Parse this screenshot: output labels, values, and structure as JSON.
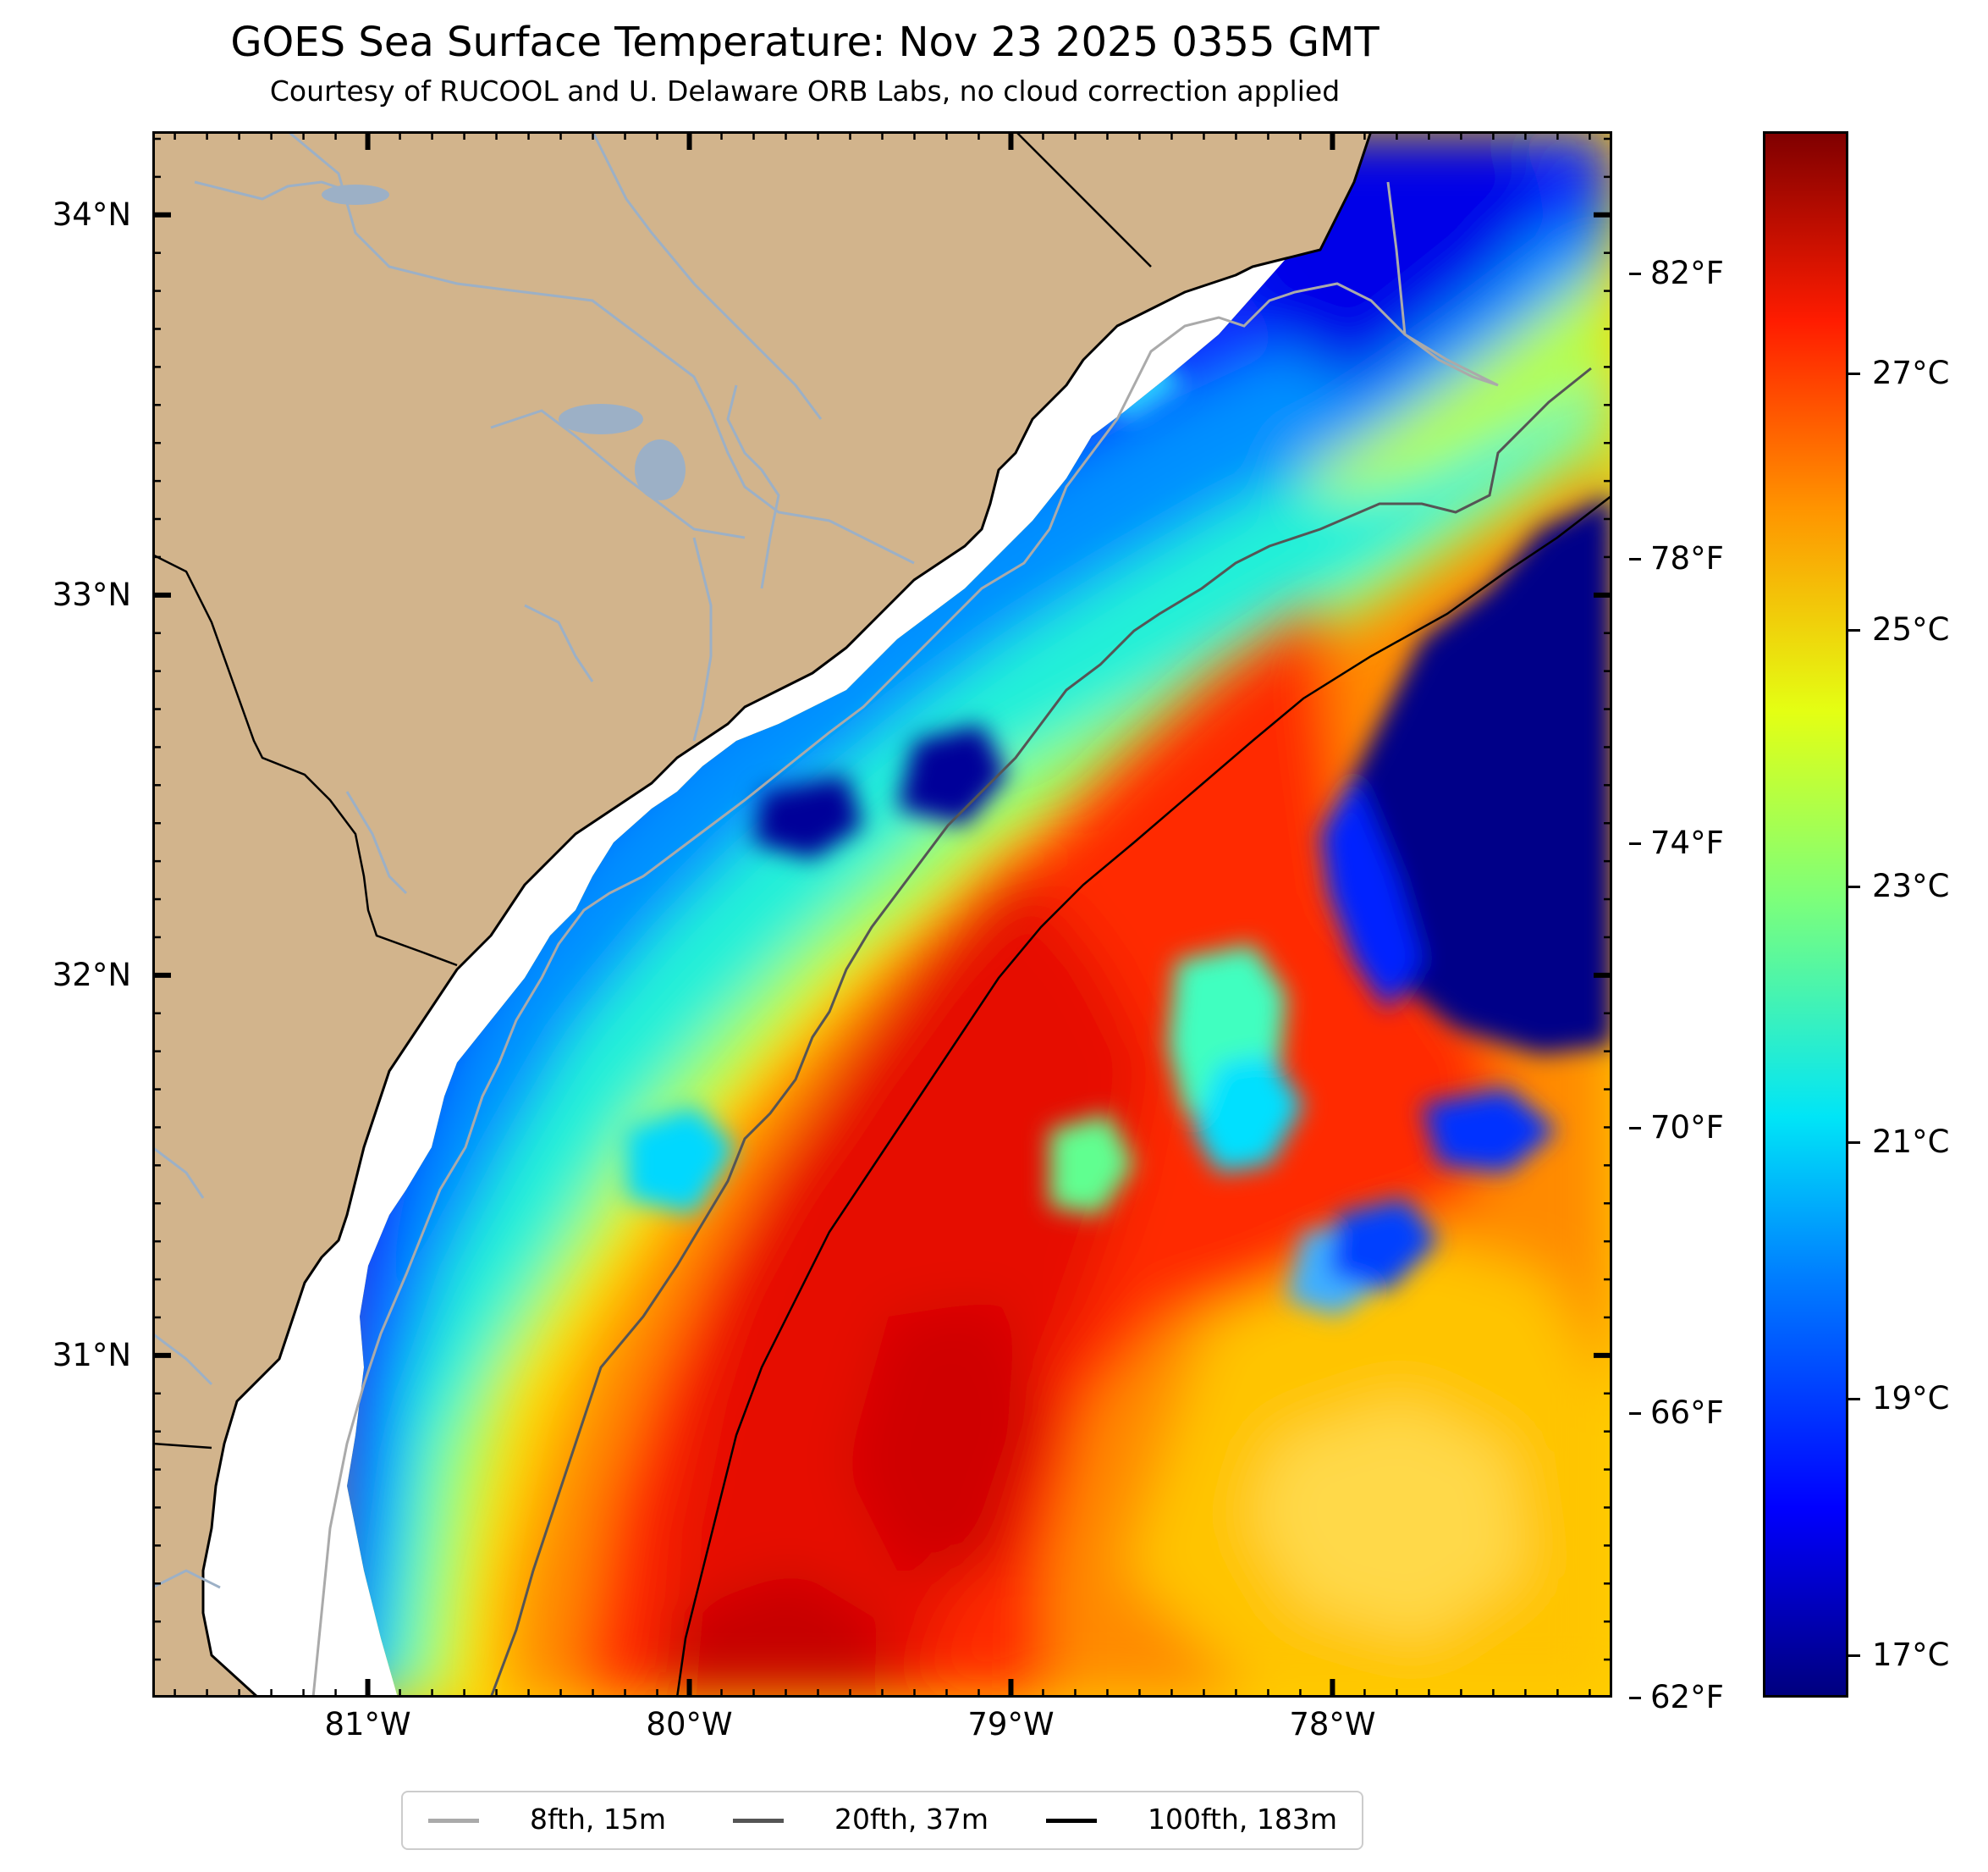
{
  "title": "GOES Sea Surface Temperature: Nov 23 2025 0355 GMT",
  "subtitle": "Courtesy of RUCOOL and U. Delaware ORB Labs, no cloud correction applied",
  "map": {
    "lat_ticks": [
      {
        "value": 34,
        "label": "34°N"
      },
      {
        "value": 33,
        "label": "33°N"
      },
      {
        "value": 32,
        "label": "32°N"
      },
      {
        "value": 31,
        "label": "31°N"
      }
    ],
    "lon_ticks": [
      {
        "value": -81,
        "label": "81°W"
      },
      {
        "value": -80,
        "label": "80°W"
      },
      {
        "value": -79,
        "label": "79°W"
      },
      {
        "value": -78,
        "label": "78°W"
      }
    ],
    "lat_range": [
      30.1,
      34.22
    ],
    "lon_range": [
      -81.67,
      -77.13
    ],
    "colors": {
      "land": "#d2b48c",
      "rivers": "#9cb0c6",
      "coastline": "#000000",
      "missing": "#ffffff"
    }
  },
  "colorbar": {
    "colormap": "jet",
    "fahrenheit_ticks": [
      {
        "value": 82,
        "label": "82°F"
      },
      {
        "value": 78,
        "label": "78°F"
      },
      {
        "value": 74,
        "label": "74°F"
      },
      {
        "value": 70,
        "label": "70°F"
      },
      {
        "value": 66,
        "label": "66°F"
      },
      {
        "value": 62,
        "label": "62°F"
      }
    ],
    "celsius_ticks": [
      {
        "value": 27,
        "label": "27°C"
      },
      {
        "value": 25,
        "label": "25°C"
      },
      {
        "value": 23,
        "label": "23°C"
      },
      {
        "value": 21,
        "label": "21°C"
      },
      {
        "value": 19,
        "label": "19°C"
      },
      {
        "value": 17,
        "label": "17°C"
      }
    ],
    "range_f": [
      62,
      84
    ],
    "range_c": [
      16.67,
      28.89
    ]
  },
  "legend": {
    "items": [
      {
        "label": "8fth, 15m",
        "color": "#aaaaaa"
      },
      {
        "label": "20fth, 37m",
        "color": "#555555"
      },
      {
        "label": "100fth, 183m",
        "color": "#000000"
      }
    ]
  }
}
